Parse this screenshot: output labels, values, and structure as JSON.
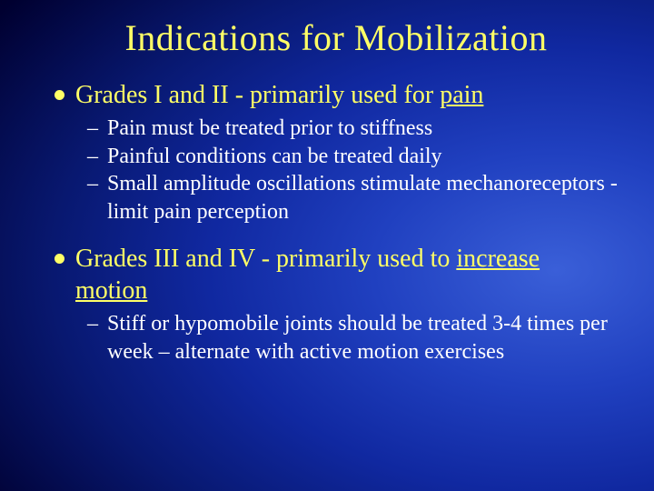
{
  "slide": {
    "background": {
      "gradient_type": "radial",
      "center": "85% 55%",
      "stops": [
        "#3a5fd8",
        "#2040c0",
        "#1028a0",
        "#081870",
        "#000030",
        "#000000"
      ]
    },
    "title": {
      "text": "Indications for Mobilization",
      "color": "#ffff66",
      "font_size_pt": 40,
      "font_family": "Times New Roman",
      "font_weight": "normal"
    },
    "body_font_family": "Times New Roman",
    "main_bullet_color": "#ffff66",
    "main_bullet_fontsize": 28,
    "sub_bullet_color": "#ffffff",
    "sub_bullet_fontsize": 24,
    "bullets": [
      {
        "text_pre": "Grades I and II - primarily used for ",
        "text_underlined": "pain",
        "text_post": "",
        "subs": [
          "Pain must be treated prior to stiffness",
          "Painful conditions can be treated daily",
          "Small amplitude oscillations stimulate mechanoreceptors - limit pain perception"
        ]
      },
      {
        "text_pre": "Grades III and IV - primarily used to ",
        "text_underlined": "increase motion",
        "text_post": "",
        "subs": [
          "Stiff or hypomobile joints should be treated 3-4 times per week – alternate with active motion exercises"
        ]
      }
    ]
  }
}
